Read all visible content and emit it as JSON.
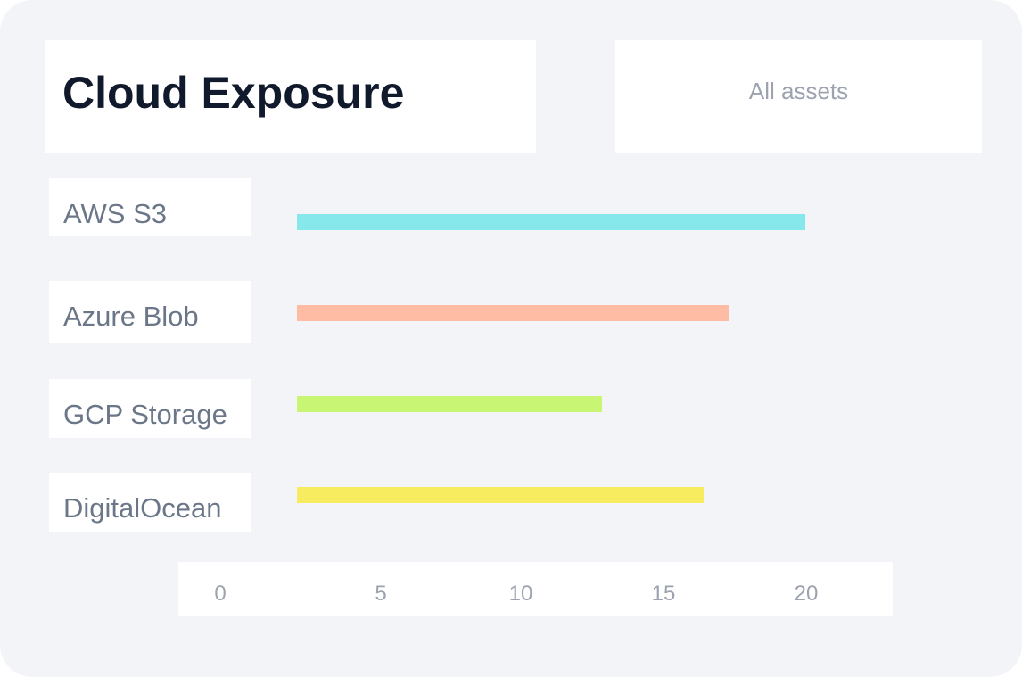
{
  "header": {
    "title": "Cloud Exposure",
    "filter_label": "All assets"
  },
  "chart_data": {
    "type": "bar",
    "orientation": "horizontal",
    "title": "Cloud Exposure",
    "categories": [
      "AWS S3",
      "Azure Blob",
      "GCP Storage",
      "DigitalOcean"
    ],
    "values": [
      20,
      17,
      12,
      16
    ],
    "colors": [
      "#87e8ec",
      "#ffbca5",
      "#c8f573",
      "#f7eb5f"
    ],
    "xticks": [
      "0",
      "5",
      "10",
      "15",
      "20"
    ],
    "xlim": [
      0,
      20
    ],
    "xlabel": "",
    "ylabel": "",
    "grid": false,
    "legend": "none"
  }
}
